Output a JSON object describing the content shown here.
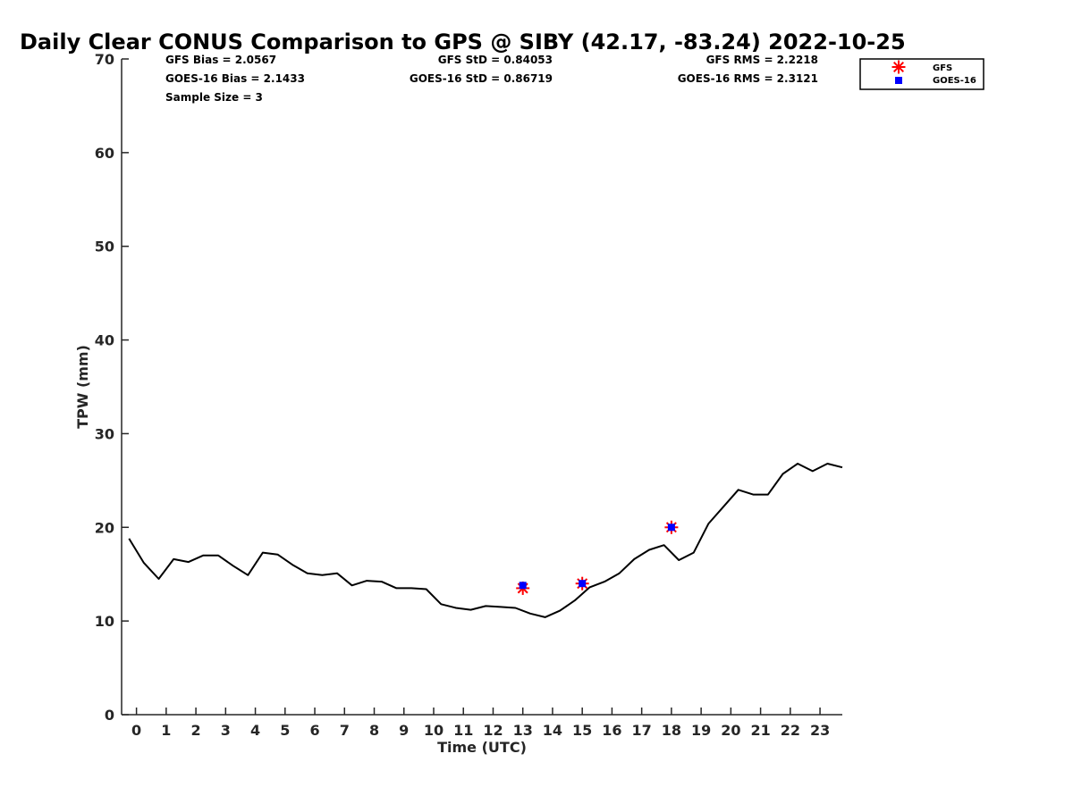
{
  "chart_data": {
    "type": "line",
    "title": "Daily Clear CONUS Comparison to GPS @ SIBY (42.17, -83.24) 2022-10-25",
    "xlabel": "Time (UTC)",
    "ylabel": "TPW (mm)",
    "xlim": [
      -0.5,
      23.75
    ],
    "ylim": [
      0,
      70
    ],
    "xticks": [
      0,
      1,
      2,
      3,
      4,
      5,
      6,
      7,
      8,
      9,
      10,
      11,
      12,
      13,
      14,
      15,
      16,
      17,
      18,
      19,
      20,
      21,
      22,
      23
    ],
    "yticks": [
      0,
      10,
      20,
      30,
      40,
      50,
      60,
      70
    ],
    "grid": false,
    "legend_position": "top-right",
    "stats": {
      "gfs_bias": "GFS Bias = 2.0567",
      "goes_bias": "GOES-16 Bias = 2.1433",
      "sample_size": "Sample Size = 3",
      "gfs_std": "GFS StD = 0.84053",
      "goes_std": "GOES-16 StD = 0.86719",
      "gfs_rms": "GFS RMS = 2.2218",
      "goes_rms": "GOES-16 RMS = 2.3121"
    },
    "series": [
      {
        "kind": "line",
        "color": "#000000",
        "x": [
          -0.25,
          0.25,
          0.75,
          1.25,
          1.75,
          2.25,
          2.75,
          3.25,
          3.75,
          4.25,
          4.75,
          5.25,
          5.75,
          6.25,
          6.75,
          7.25,
          7.75,
          8.25,
          8.75,
          9.25,
          9.75,
          10.25,
          10.75,
          11.25,
          11.75,
          12.25,
          12.75,
          13.25,
          13.75,
          14.25,
          14.75,
          15.25,
          15.75,
          16.25,
          16.75,
          17.25,
          17.75,
          18.25,
          18.75,
          19.25,
          19.75,
          20.25,
          20.75,
          21.25,
          21.75,
          22.25,
          22.75,
          23.25,
          23.75
        ],
        "values": [
          18.8,
          16.2,
          14.5,
          16.6,
          16.3,
          17.0,
          17.0,
          15.9,
          14.9,
          17.3,
          17.1,
          16.0,
          15.1,
          14.9,
          15.1,
          13.8,
          14.3,
          14.2,
          13.5,
          13.5,
          13.4,
          11.8,
          11.4,
          11.2,
          11.6,
          11.5,
          11.4,
          10.8,
          10.4,
          11.1,
          12.2,
          13.6,
          14.2,
          15.1,
          16.6,
          17.6,
          18.1,
          16.5,
          17.3,
          20.4,
          22.2,
          24.0,
          23.5,
          23.5,
          25.7,
          26.8,
          26.0,
          26.8,
          26.4
        ]
      },
      {
        "name": "GFS",
        "kind": "marker",
        "marker": "asterisk",
        "color": "#ff0000",
        "x": [
          13,
          15,
          18
        ],
        "values": [
          13.5,
          14.0,
          20.0
        ]
      },
      {
        "name": "GOES-16",
        "kind": "marker",
        "marker": "square",
        "color": "#0000ff",
        "x": [
          13,
          15,
          18
        ],
        "values": [
          13.8,
          14.0,
          20.0
        ]
      }
    ]
  }
}
